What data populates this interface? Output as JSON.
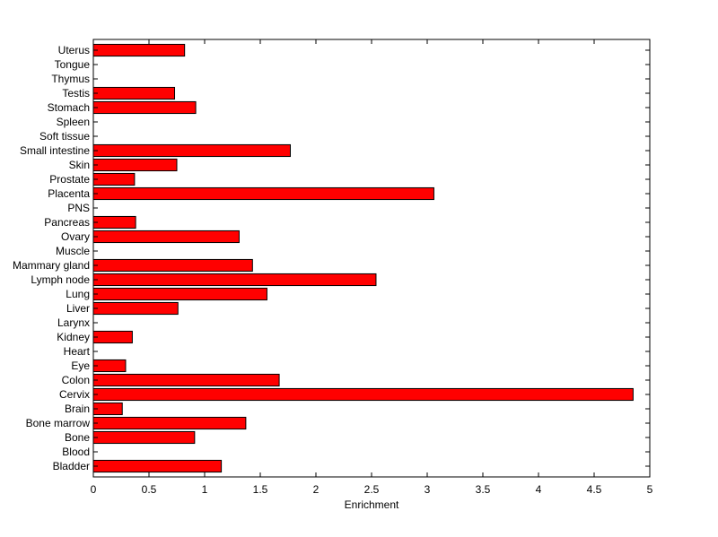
{
  "chart_data": {
    "type": "bar",
    "orientation": "horizontal",
    "title": "",
    "xlabel": "Enrichment",
    "ylabel": "",
    "xlim": [
      0,
      5
    ],
    "xticks": [
      0,
      0.5,
      1,
      1.5,
      2,
      2.5,
      3,
      3.5,
      4,
      4.5,
      5
    ],
    "xtick_labels": [
      "0",
      "0.5",
      "1",
      "1.5",
      "2",
      "2.5",
      "3",
      "3.5",
      "4",
      "4.5",
      "5"
    ],
    "grid": false,
    "legend": "none",
    "bar_color": "#ff0000",
    "bar_edge_color": "#000000",
    "categories": [
      "Bladder",
      "Blood",
      "Bone",
      "Bone marrow",
      "Brain",
      "Cervix",
      "Colon",
      "Eye",
      "Heart",
      "Kidney",
      "Larynx",
      "Liver",
      "Lung",
      "Lymph node",
      "Mammary gland",
      "Muscle",
      "Ovary",
      "Pancreas",
      "PNS",
      "Placenta",
      "Prostate",
      "Skin",
      "Small intestine",
      "Soft tissue",
      "Spleen",
      "Stomach",
      "Testis",
      "Thymus",
      "Tongue",
      "Uterus"
    ],
    "values": [
      1.15,
      0,
      0.91,
      1.37,
      0.26,
      4.85,
      1.67,
      0.29,
      0,
      0.35,
      0,
      0.76,
      1.56,
      2.54,
      1.43,
      0,
      1.31,
      0.38,
      0,
      3.06,
      0.37,
      0.75,
      1.77,
      0,
      0,
      0.92,
      0.73,
      0,
      0,
      0.82
    ]
  }
}
